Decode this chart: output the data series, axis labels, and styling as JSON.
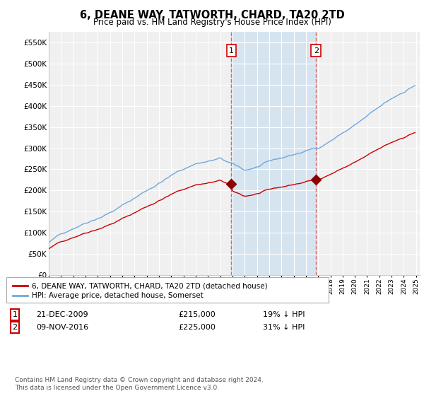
{
  "title": "6, DEANE WAY, TATWORTH, CHARD, TA20 2TD",
  "subtitle": "Price paid vs. HM Land Registry's House Price Index (HPI)",
  "ylim": [
    0,
    575000
  ],
  "yticks": [
    0,
    50000,
    100000,
    150000,
    200000,
    250000,
    300000,
    350000,
    400000,
    450000,
    500000,
    550000
  ],
  "legend_line1": "6, DEANE WAY, TATWORTH, CHARD, TA20 2TD (detached house)",
  "legend_line2": "HPI: Average price, detached house, Somerset",
  "transaction1_date": "21-DEC-2009",
  "transaction1_price": 215000,
  "transaction1_label": "1",
  "transaction1_hpi": "19% ↓ HPI",
  "transaction2_date": "09-NOV-2016",
  "transaction2_price": 225000,
  "transaction2_label": "2",
  "transaction2_hpi": "31% ↓ HPI",
  "footnote": "Contains HM Land Registry data © Crown copyright and database right 2024.\nThis data is licensed under the Open Government Licence v3.0.",
  "hpi_color": "#6fa8dc",
  "price_color": "#cc0000",
  "vline_color": "#dd6666",
  "marker_color": "#8b0000",
  "bg_color": "#ffffff",
  "plot_bg": "#f0f0f0",
  "grid_color": "#ffffff",
  "highlight_bg": "#d6e4f0",
  "label_border_color": "#cc0000"
}
